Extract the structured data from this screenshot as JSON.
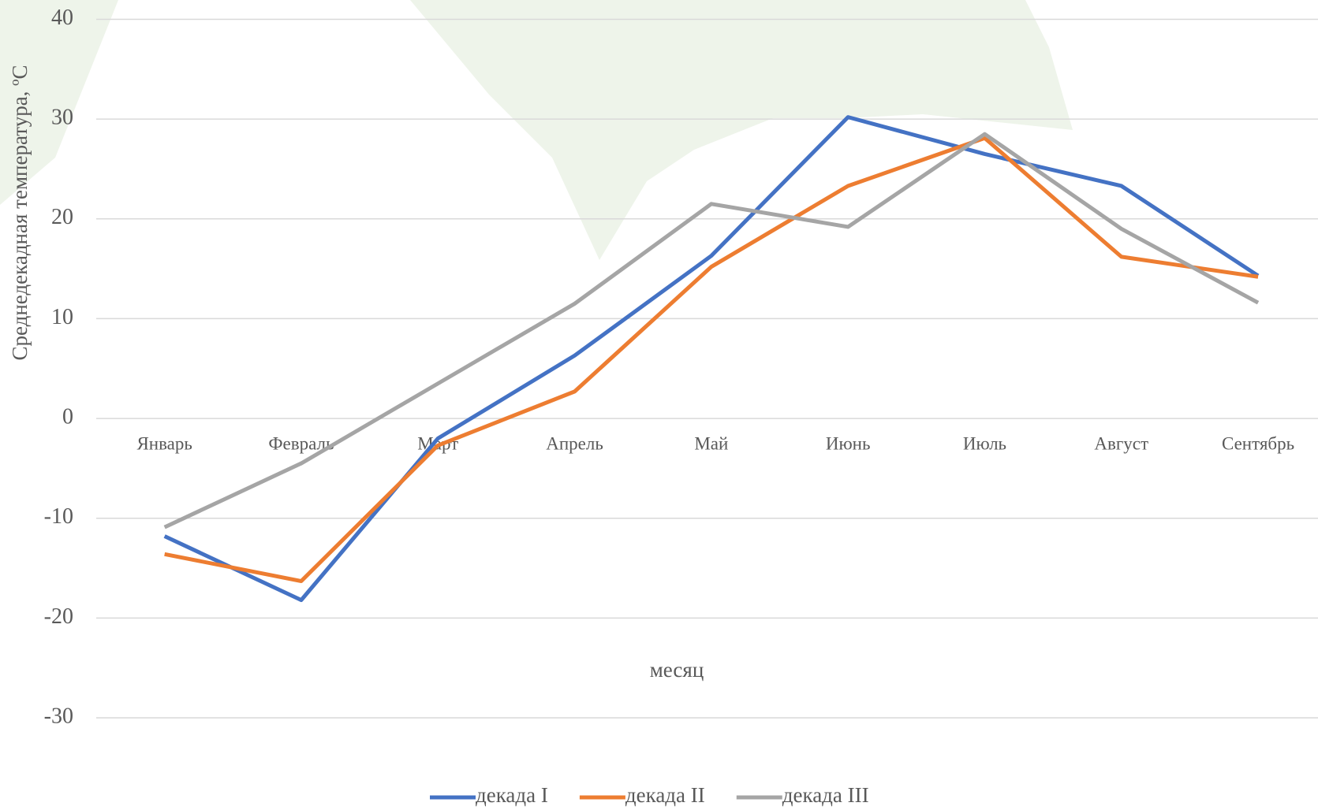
{
  "chart_data": {
    "type": "line",
    "y_label": "Среднедекадная температура, ºС",
    "x_label": "месяц",
    "categories": [
      "Январь",
      "Февраль",
      "Март",
      "Апрель",
      "Май",
      "Июнь",
      "Июль",
      "Август",
      "Сентябрь"
    ],
    "series": [
      {
        "name": "декада I",
        "color": "#4472c4",
        "values": [
          -11.8,
          -18.2,
          -2.0,
          6.3,
          16.3,
          30.2,
          26.5,
          23.3,
          14.3
        ]
      },
      {
        "name": "декада II",
        "color": "#ed7d31",
        "values": [
          -13.6,
          -16.3,
          -2.7,
          2.7,
          15.2,
          23.3,
          28.1,
          16.2,
          14.2
        ]
      },
      {
        "name": "декада III",
        "color": "#a5a5a5",
        "values": [
          -10.9,
          -4.5,
          3.5,
          11.5,
          21.5,
          19.2,
          28.5,
          19.0,
          11.6
        ]
      }
    ],
    "ylim": [
      -30,
      40
    ],
    "yticks": [
      -30,
      -20,
      -10,
      0,
      10,
      20,
      30,
      40
    ],
    "grid": true
  }
}
